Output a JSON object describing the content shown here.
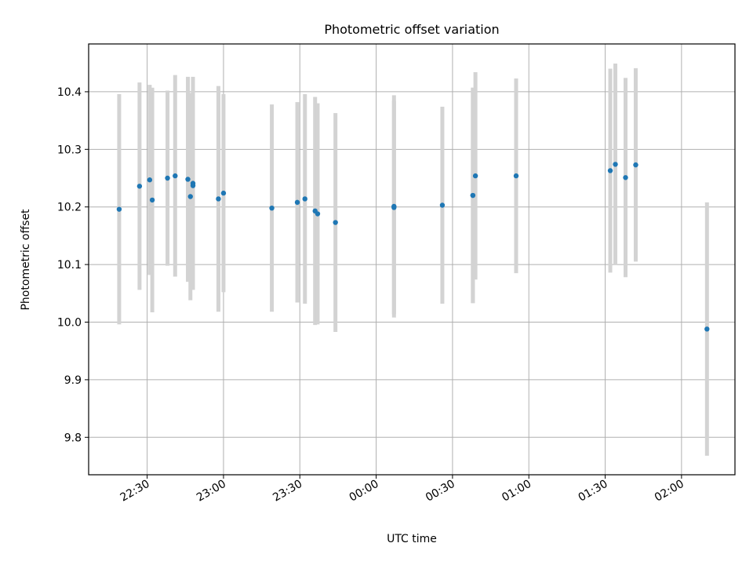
{
  "chart_data": {
    "type": "scatter",
    "title": "Photometric offset variation",
    "xlabel": "UTC time",
    "ylabel": "Photometric offset",
    "grid": true,
    "xlim": [
      "22:07",
      "02:21"
    ],
    "ylim": [
      9.735,
      10.483
    ],
    "xticks": [
      "22:30",
      "23:00",
      "23:30",
      "00:00",
      "00:30",
      "01:00",
      "01:30",
      "02:00"
    ],
    "yticks": [
      "9.8",
      "9.9",
      "10.0",
      "10.1",
      "10.2",
      "10.3",
      "10.4"
    ],
    "colors": {
      "points": "#1f77b4",
      "errorbars": "#d3d3d3",
      "grid": "#b0b0b0"
    },
    "points": [
      {
        "x": "22:19",
        "y": 10.196,
        "yerr": 0.2
      },
      {
        "x": "22:27",
        "y": 10.236,
        "yerr": 0.18
      },
      {
        "x": "22:31",
        "y": 10.247,
        "yerr": 0.165
      },
      {
        "x": "22:32",
        "y": 10.212,
        "yerr": 0.195
      },
      {
        "x": "22:38",
        "y": 10.25,
        "yerr": 0.152
      },
      {
        "x": "22:41",
        "y": 10.254,
        "yerr": 0.175
      },
      {
        "x": "22:46",
        "y": 10.248,
        "yerr": 0.178
      },
      {
        "x": "22:47",
        "y": 10.218,
        "yerr": 0.18
      },
      {
        "x": "22:48",
        "y": 10.241,
        "yerr": 0.185
      },
      {
        "x": "22:48",
        "y": 10.237,
        "yerr": 0.175
      },
      {
        "x": "22:58",
        "y": 10.214,
        "yerr": 0.196
      },
      {
        "x": "23:00",
        "y": 10.224,
        "yerr": 0.172
      },
      {
        "x": "23:19",
        "y": 10.198,
        "yerr": 0.18
      },
      {
        "x": "23:29",
        "y": 10.208,
        "yerr": 0.174
      },
      {
        "x": "23:32",
        "y": 10.214,
        "yerr": 0.182
      },
      {
        "x": "23:36",
        "y": 10.193,
        "yerr": 0.198
      },
      {
        "x": "23:37",
        "y": 10.188,
        "yerr": 0.192
      },
      {
        "x": "23:44",
        "y": 10.173,
        "yerr": 0.19
      },
      {
        "x": "00:07",
        "y": 10.201,
        "yerr": 0.193
      },
      {
        "x": "00:07",
        "y": 10.199,
        "yerr": 0.185
      },
      {
        "x": "00:26",
        "y": 10.203,
        "yerr": 0.171
      },
      {
        "x": "00:38",
        "y": 10.22,
        "yerr": 0.187
      },
      {
        "x": "00:38",
        "y": 10.22,
        "yerr": 0.187
      },
      {
        "x": "00:39",
        "y": 10.254,
        "yerr": 0.18
      },
      {
        "x": "00:55",
        "y": 10.254,
        "yerr": 0.169
      },
      {
        "x": "01:32",
        "y": 10.263,
        "yerr": 0.177
      },
      {
        "x": "01:34",
        "y": 10.274,
        "yerr": 0.175
      },
      {
        "x": "01:38",
        "y": 10.251,
        "yerr": 0.173
      },
      {
        "x": "01:42",
        "y": 10.273,
        "yerr": 0.168
      },
      {
        "x": "02:10",
        "y": 9.988,
        "yerr": 0.22
      }
    ]
  }
}
